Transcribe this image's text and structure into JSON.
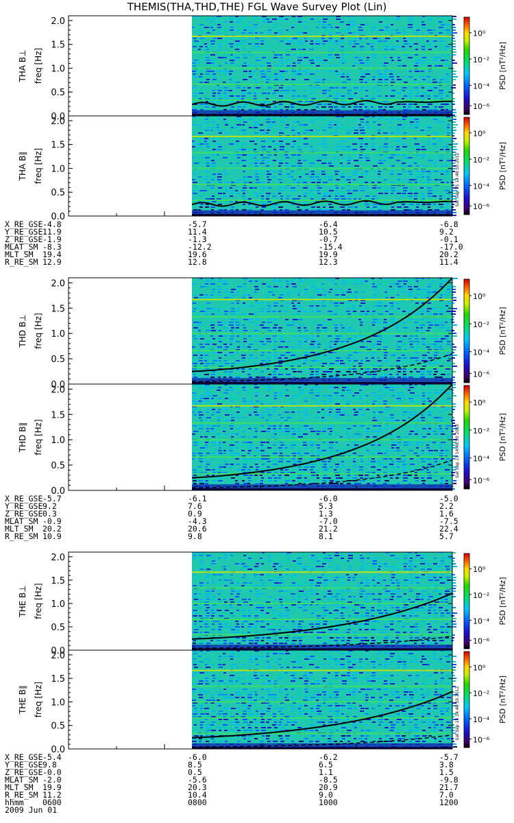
{
  "title": "THEMIS(THA,THD,THE) FGL Wave Survey Plot (Lin)",
  "colorbar": {
    "label": "PSD [nT²/Hz]",
    "ticks": [
      "10⁰",
      "10⁻²",
      "10⁻⁴",
      "10⁻⁶"
    ],
    "stamp": "Sat Sep 15 14:48:50 2012"
  },
  "chart_data": [
    {
      "type": "heatmap",
      "probe": "THA",
      "ylabel": "THA B⊥  freq [Hz]",
      "ylim": [
        0,
        2.1
      ],
      "yticks": [
        "0.0",
        "0.5",
        "1.0",
        "1.5",
        "2.0"
      ],
      "data_start_hhmm": "0800",
      "data_end_hhmm": "1200",
      "lines": {
        "solid_start_hz": 0.24,
        "solid_end_hz": 0.3,
        "dashed_hz": 0.03
      }
    },
    {
      "type": "heatmap",
      "probe": "THA",
      "ylabel": "THA B∥  freq [Hz]",
      "ylim": [
        0,
        2.1
      ],
      "yticks": [
        "0.0",
        "0.5",
        "1.0",
        "1.5",
        "2.0"
      ],
      "data_start_hhmm": "0800",
      "data_end_hhmm": "1200",
      "lines": {
        "solid_start_hz": 0.24,
        "solid_end_hz": 0.3,
        "dashed_hz": 0.03
      }
    },
    {
      "type": "heatmap",
      "probe": "THD",
      "ylabel": "THD B⊥  freq [Hz]",
      "ylim": [
        0,
        2.1
      ],
      "yticks": [
        "0.0",
        "0.5",
        "1.0",
        "1.5",
        "2.0"
      ],
      "data_start_hhmm": "0800",
      "data_end_hhmm": "1200",
      "lines": {
        "solid_start_hz": 0.25,
        "solid_end_hz": 2.1,
        "dashed_start_hz": 0.05,
        "dashed_end_hz": 0.6
      }
    },
    {
      "type": "heatmap",
      "probe": "THD",
      "ylabel": "THD B∥  freq [Hz]",
      "ylim": [
        0,
        2.1
      ],
      "yticks": [
        "0.0",
        "0.5",
        "1.0",
        "1.5",
        "2.0"
      ],
      "data_start_hhmm": "0800",
      "data_end_hhmm": "1200",
      "lines": {
        "solid_start_hz": 0.25,
        "solid_end_hz": 2.1,
        "dashed_start_hz": 0.05,
        "dashed_end_hz": 0.6
      }
    },
    {
      "type": "heatmap",
      "probe": "THE",
      "ylabel": "THE B⊥  freq [Hz]",
      "ylim": [
        0,
        2.1
      ],
      "yticks": [
        "0.0",
        "0.5",
        "1.0",
        "1.5",
        "2.0"
      ],
      "data_start_hhmm": "0800",
      "data_end_hhmm": "1200",
      "lines": {
        "solid_start_hz": 0.24,
        "solid_end_hz": 1.22,
        "dashed_start_hz": 0.04,
        "dashed_end_hz": 0.3
      }
    },
    {
      "type": "heatmap",
      "probe": "THE",
      "ylabel": "THE B∥  freq [Hz]",
      "ylim": [
        0,
        2.1
      ],
      "yticks": [
        "0.0",
        "0.5",
        "1.0",
        "1.5",
        "2.0"
      ],
      "data_start_hhmm": "0800",
      "data_end_hhmm": "1200",
      "lines": {
        "solid_start_hz": 0.24,
        "solid_end_hz": 1.22,
        "dashed_start_hz": 0.04,
        "dashed_end_hz": 0.3
      }
    }
  ],
  "ephemeris": [
    {
      "probe": "THA",
      "rows": [
        {
          "label": "X_RE_GSE",
          "values": [
            "-4.8",
            "-5.7",
            "-6.4",
            "-6.8"
          ]
        },
        {
          "label": "Y_RE_GSE",
          "values": [
            "11.9",
            "11.4",
            "10.5",
            "9.2"
          ]
        },
        {
          "label": "Z_RE_GSE",
          "values": [
            "-1.9",
            "-1.3",
            "-0.7",
            "-0.1"
          ]
        },
        {
          "label": "MLAT_SM",
          "values": [
            "-8.3",
            "-12.2",
            "-15.4",
            "-17.0"
          ]
        },
        {
          "label": "MLT_SM",
          "values": [
            "19.4",
            "19.6",
            "19.9",
            "20.2"
          ]
        },
        {
          "label": "R_RE_SM",
          "values": [
            "12.9",
            "12.8",
            "12.3",
            "11.4"
          ]
        }
      ]
    },
    {
      "probe": "THD",
      "rows": [
        {
          "label": "X_RE_GSE",
          "values": [
            "-5.7",
            "-6.1",
            "-6.0",
            "-5.0"
          ]
        },
        {
          "label": "Y_RE_GSE",
          "values": [
            "9.2",
            "7.6",
            "5.3",
            "2.2"
          ]
        },
        {
          "label": "Z_RE_GSE",
          "values": [
            "0.3",
            "0.9",
            "1.3",
            "1.6"
          ]
        },
        {
          "label": "MLAT_SM",
          "values": [
            "-0.9",
            "-4.3",
            "-7.0",
            "-7.5"
          ]
        },
        {
          "label": "MLT_SM",
          "values": [
            "20.2",
            "20.6",
            "21.2",
            "22.4"
          ]
        },
        {
          "label": "R_RE_SM",
          "values": [
            "10.9",
            "9.8",
            "8.1",
            "5.7"
          ]
        }
      ]
    },
    {
      "probe": "THE",
      "rows": [
        {
          "label": "X_RE_GSE",
          "values": [
            "-5.4",
            "-6.0",
            "-6.2",
            "-5.7"
          ]
        },
        {
          "label": "Y_RE_GSE",
          "values": [
            "9.8",
            "8.5",
            "6.5",
            "3.8"
          ]
        },
        {
          "label": "Z_RE_GSE",
          "values": [
            "-0.0",
            "0.5",
            "1.1",
            "1.5"
          ]
        },
        {
          "label": "MLAT_SM",
          "values": [
            "-2.0",
            "-5.6",
            "-8.5",
            "-9.8"
          ]
        },
        {
          "label": "MLT_SM",
          "values": [
            "19.9",
            "20.3",
            "20.9",
            "21.7"
          ]
        },
        {
          "label": "R_RE_SM",
          "values": [
            "11.2",
            "10.4",
            "9.0",
            "7.0"
          ]
        },
        {
          "label": "hhmm",
          "values": [
            "0600",
            "0800",
            "1000",
            "1200"
          ]
        }
      ]
    }
  ],
  "date": "2009 Jun 01"
}
